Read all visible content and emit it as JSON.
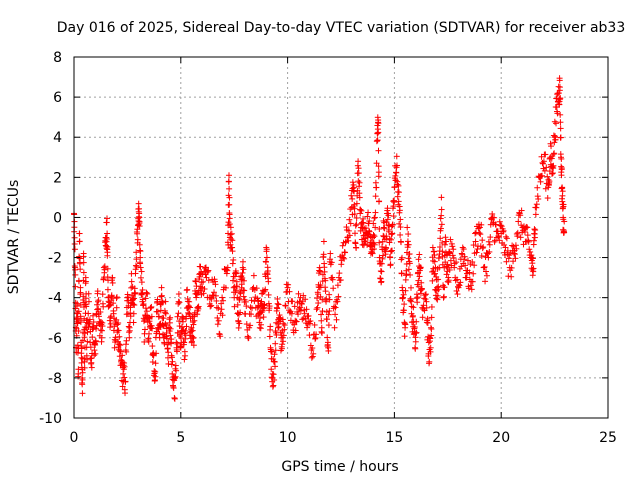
{
  "chart_data": {
    "type": "scatter",
    "title": "Day 016 of 2025, Sidereal Day-to-day VTEC variation (SDTVAR) for receiver ab33",
    "xlabel": "GPS time / hours",
    "ylabel": "SDTVAR / TECUs",
    "xlim": [
      0,
      25
    ],
    "ylim": [
      -10,
      8
    ],
    "xticks": [
      0,
      5,
      10,
      15,
      20,
      25
    ],
    "yticks": [
      -10,
      -8,
      -6,
      -4,
      -2,
      0,
      2,
      4,
      6,
      8
    ],
    "grid": true,
    "marker": "+",
    "color": "#ff0000",
    "series": [
      {
        "name": "SDTVAR",
        "points": [
          [
            0.0,
            0.2
          ],
          [
            0.05,
            -2.5
          ],
          [
            0.1,
            -6.5
          ],
          [
            0.15,
            -4.3
          ],
          [
            0.2,
            -7.8
          ],
          [
            0.25,
            -0.8
          ],
          [
            0.3,
            -3.5
          ],
          [
            0.35,
            -7.0
          ],
          [
            0.4,
            -8.1
          ],
          [
            0.45,
            -1.8
          ],
          [
            0.5,
            -7.5
          ],
          [
            0.55,
            -3.0
          ],
          [
            0.6,
            -6.9
          ],
          [
            0.7,
            -4.2
          ],
          [
            0.8,
            -7.3
          ],
          [
            0.9,
            -5.5
          ],
          [
            1.0,
            -6.8
          ],
          [
            1.1,
            -3.8
          ],
          [
            1.2,
            -5.2
          ],
          [
            1.3,
            -6.0
          ],
          [
            1.4,
            -2.5
          ],
          [
            1.5,
            -1.0
          ],
          [
            1.55,
            -0.8
          ],
          [
            1.6,
            -4.0
          ],
          [
            1.7,
            -5.0
          ],
          [
            1.8,
            -3.0
          ],
          [
            1.9,
            -6.5
          ],
          [
            2.0,
            -4.5
          ],
          [
            2.1,
            -6.6
          ],
          [
            2.2,
            -7.2
          ],
          [
            2.3,
            -7.8
          ],
          [
            2.4,
            -8.2
          ],
          [
            2.5,
            -4.0
          ],
          [
            2.6,
            -5.5
          ],
          [
            2.7,
            -3.2
          ],
          [
            2.8,
            -4.8
          ],
          [
            2.9,
            -2.4
          ],
          [
            3.0,
            -0.4
          ],
          [
            3.05,
            0.2
          ],
          [
            3.1,
            -2.0
          ],
          [
            3.2,
            -4.2
          ],
          [
            3.3,
            -5.8
          ],
          [
            3.4,
            -3.8
          ],
          [
            3.5,
            -6.2
          ],
          [
            3.6,
            -4.5
          ],
          [
            3.7,
            -6.8
          ],
          [
            3.8,
            -7.7
          ],
          [
            3.9,
            -4.2
          ],
          [
            4.0,
            -5.8
          ],
          [
            4.1,
            -3.5
          ],
          [
            4.2,
            -6.0
          ],
          [
            4.3,
            -4.8
          ],
          [
            4.4,
            -7.0
          ],
          [
            4.5,
            -5.0
          ],
          [
            4.6,
            -7.8
          ],
          [
            4.7,
            -9.0
          ],
          [
            4.8,
            -6.5
          ],
          [
            4.9,
            -4.2
          ],
          [
            5.0,
            -6.5
          ],
          [
            5.1,
            -5.2
          ],
          [
            5.2,
            -6.9
          ],
          [
            5.3,
            -3.6
          ],
          [
            5.4,
            -4.8
          ],
          [
            5.5,
            -5.5
          ],
          [
            5.6,
            -6.0
          ],
          [
            5.7,
            -3.2
          ],
          [
            5.8,
            -4.5
          ],
          [
            5.9,
            -2.8
          ],
          [
            6.0,
            -3.5
          ],
          [
            6.2,
            -3.0
          ],
          [
            6.4,
            -4.0
          ],
          [
            6.6,
            -3.2
          ],
          [
            6.8,
            -5.8
          ],
          [
            7.0,
            -3.6
          ],
          [
            7.2,
            -2.5
          ],
          [
            7.25,
            1.8
          ],
          [
            7.3,
            -1.0
          ],
          [
            7.4,
            -1.5
          ],
          [
            7.5,
            -4.0
          ],
          [
            7.6,
            -2.8
          ],
          [
            7.7,
            -5.2
          ],
          [
            7.8,
            -3.8
          ],
          [
            7.9,
            -2.5
          ],
          [
            8.0,
            -4.8
          ],
          [
            8.2,
            -5.5
          ],
          [
            8.4,
            -3.5
          ],
          [
            8.6,
            -4.5
          ],
          [
            8.7,
            -5.5
          ],
          [
            8.8,
            -3.8
          ],
          [
            8.9,
            -4.5
          ],
          [
            9.0,
            -1.5
          ],
          [
            9.1,
            -3.2
          ],
          [
            9.2,
            -6.5
          ],
          [
            9.3,
            -7.8
          ],
          [
            9.4,
            -7.2
          ],
          [
            9.5,
            -4.5
          ],
          [
            9.6,
            -5.0
          ],
          [
            9.7,
            -6.0
          ],
          [
            9.8,
            -5.3
          ],
          [
            10.0,
            -3.5
          ],
          [
            10.2,
            -4.8
          ],
          [
            10.4,
            -5.2
          ],
          [
            10.6,
            -4.0
          ],
          [
            10.8,
            -4.8
          ],
          [
            11.0,
            -5.2
          ],
          [
            11.2,
            -6.8
          ],
          [
            11.4,
            -4.5
          ],
          [
            11.5,
            -2.5
          ],
          [
            11.6,
            -5.5
          ],
          [
            11.7,
            -1.2
          ],
          [
            11.8,
            -4.2
          ],
          [
            11.9,
            -6.5
          ],
          [
            12.0,
            -1.8
          ],
          [
            12.2,
            -5.5
          ],
          [
            12.4,
            -3.0
          ],
          [
            12.6,
            -2.0
          ],
          [
            12.8,
            -1.0
          ],
          [
            13.0,
            0.5
          ],
          [
            13.1,
            1.5
          ],
          [
            13.2,
            -1.5
          ],
          [
            13.3,
            2.8
          ],
          [
            13.4,
            0.2
          ],
          [
            13.5,
            -0.5
          ],
          [
            13.6,
            -1.2
          ],
          [
            13.7,
            -0.8
          ],
          [
            13.8,
            -0.3
          ],
          [
            13.9,
            -1.8
          ],
          [
            14.0,
            -1.0
          ],
          [
            14.1,
            -0.5
          ],
          [
            14.2,
            4.2
          ],
          [
            14.25,
            4.7
          ],
          [
            14.3,
            -2.0
          ],
          [
            14.4,
            -2.7
          ],
          [
            14.5,
            -0.5
          ],
          [
            14.6,
            -1.5
          ],
          [
            14.7,
            0.2
          ],
          [
            14.8,
            -2.0
          ],
          [
            14.9,
            -0.8
          ],
          [
            15.0,
            1.5
          ],
          [
            15.1,
            2.5
          ],
          [
            15.2,
            0.8
          ],
          [
            15.3,
            -1.2
          ],
          [
            15.4,
            -4.0
          ],
          [
            15.5,
            -5.5
          ],
          [
            15.6,
            -0.5
          ],
          [
            15.7,
            -2.2
          ],
          [
            15.8,
            -4.8
          ],
          [
            15.9,
            -5.2
          ],
          [
            16.0,
            -6.2
          ],
          [
            16.1,
            -2.8
          ],
          [
            16.2,
            -2.5
          ],
          [
            16.3,
            -4.5
          ],
          [
            16.5,
            -4.2
          ],
          [
            16.6,
            -6.8
          ],
          [
            16.7,
            -6.5
          ],
          [
            16.8,
            -1.5
          ],
          [
            16.9,
            -2.8
          ],
          [
            17.0,
            -3.5
          ],
          [
            17.1,
            -2.5
          ],
          [
            17.2,
            1.0
          ],
          [
            17.3,
            -4.0
          ],
          [
            17.4,
            -1.2
          ],
          [
            17.5,
            -3.2
          ],
          [
            17.6,
            -1.8
          ],
          [
            17.8,
            -2.5
          ],
          [
            18.0,
            -3.5
          ],
          [
            18.2,
            -1.5
          ],
          [
            18.4,
            -2.8
          ],
          [
            18.6,
            -3.2
          ],
          [
            18.8,
            -1.2
          ],
          [
            19.0,
            -0.5
          ],
          [
            19.2,
            -2.5
          ],
          [
            19.4,
            -2.0
          ],
          [
            19.6,
            0.0
          ],
          [
            19.8,
            -1.0
          ],
          [
            20.0,
            -0.8
          ],
          [
            20.2,
            -1.5
          ],
          [
            20.4,
            -2.5
          ],
          [
            20.6,
            -1.8
          ],
          [
            20.8,
            -0.2
          ],
          [
            21.0,
            -0.5
          ],
          [
            21.2,
            -1.2
          ],
          [
            21.4,
            -2.0
          ],
          [
            21.5,
            -2.7
          ],
          [
            21.6,
            0.5
          ],
          [
            21.8,
            2.0
          ],
          [
            22.0,
            2.8
          ],
          [
            22.2,
            1.5
          ],
          [
            22.3,
            3.0
          ],
          [
            22.4,
            2.5
          ],
          [
            22.5,
            4.0
          ],
          [
            22.6,
            5.5
          ],
          [
            22.7,
            6.2
          ],
          [
            22.75,
            6.5
          ],
          [
            22.8,
            3.0
          ],
          [
            22.85,
            1.5
          ],
          [
            22.9,
            0.0
          ],
          [
            22.95,
            -0.2
          ]
        ]
      }
    ]
  }
}
